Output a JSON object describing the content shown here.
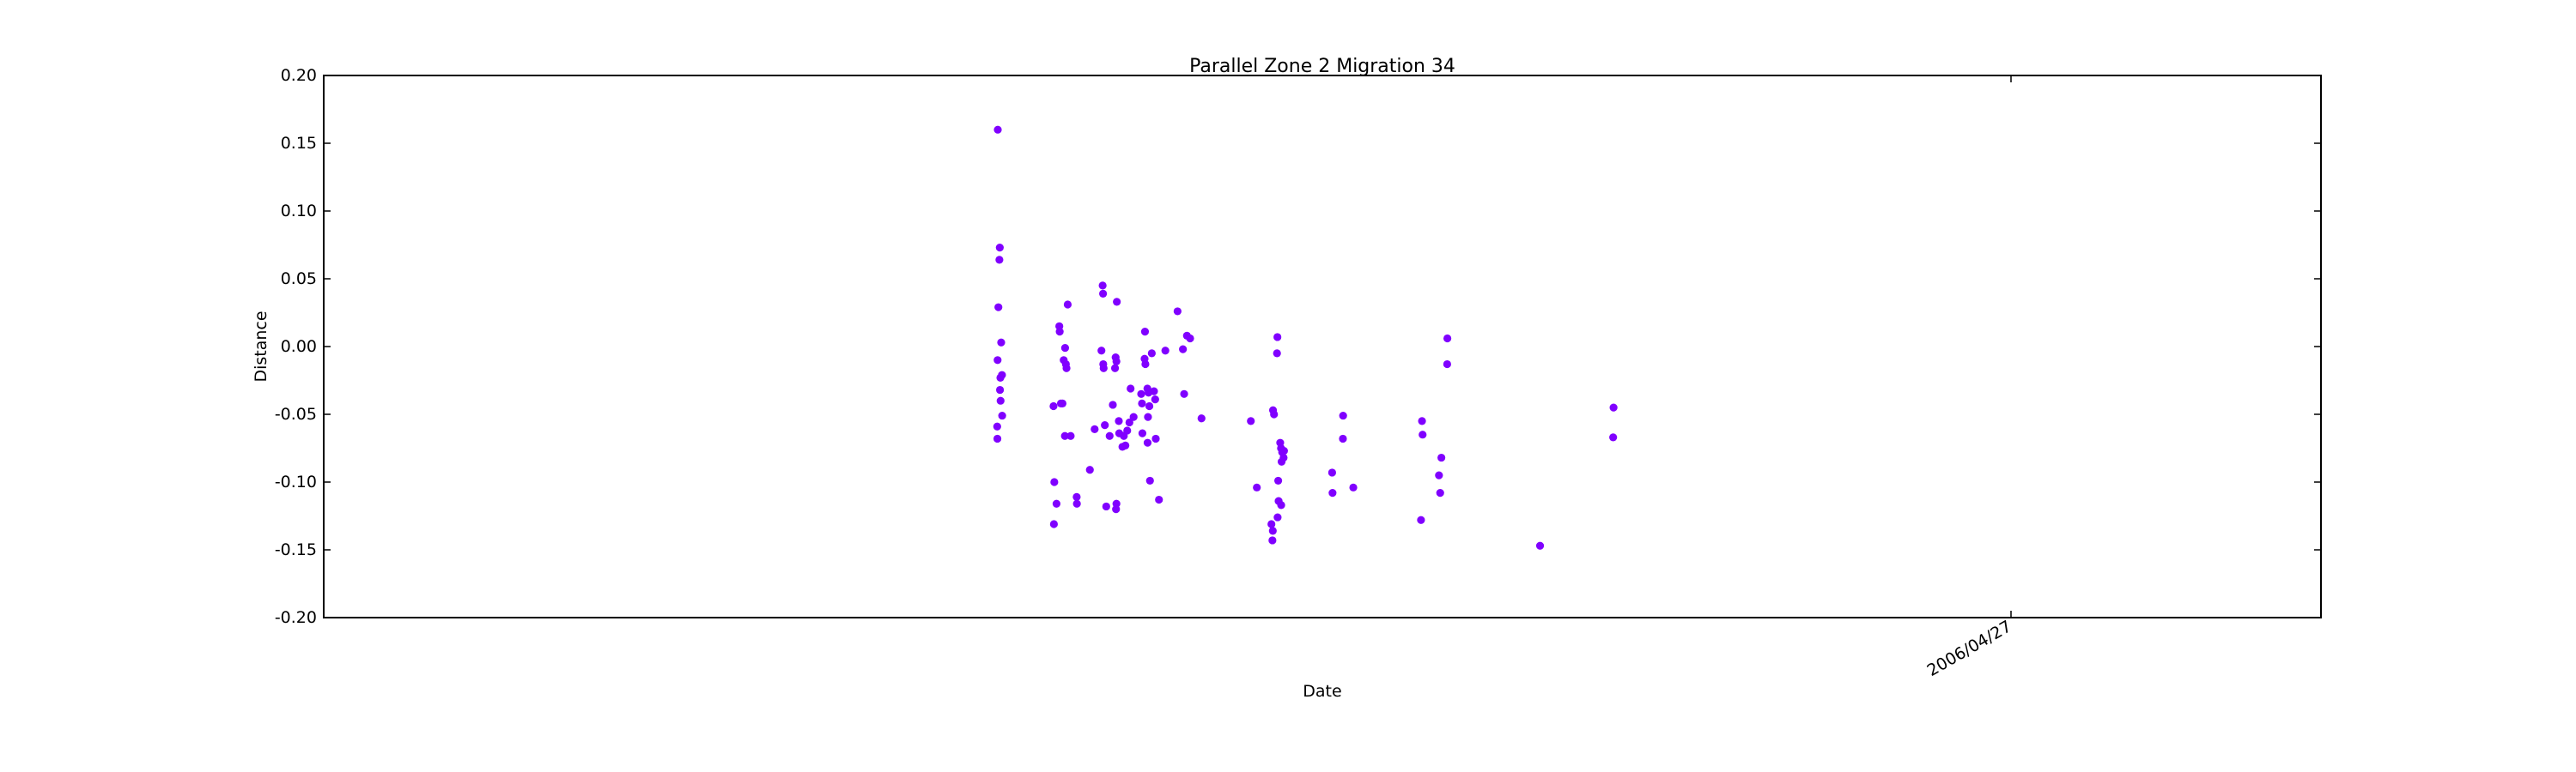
{
  "chart_data": {
    "type": "scatter",
    "title": "Parallel Zone 2 Migration 34",
    "xlabel": "Date",
    "ylabel": "Distance",
    "ylim": [
      -0.2,
      0.2
    ],
    "yticks": [
      "-0.20",
      "-0.15",
      "-0.10",
      "-0.05",
      "0.00",
      "0.05",
      "0.10",
      "0.15",
      "0.20"
    ],
    "xtick_labels": [
      "2006/04/27"
    ],
    "grid": false,
    "marker_color": "#8000ff",
    "x_note": "dates not individually labeled",
    "series": [
      {
        "points": [
          [
            0.3375,
            0.16
          ],
          [
            0.3378,
            0.029
          ],
          [
            0.3385,
            0.073
          ],
          [
            0.3383,
            0.064
          ],
          [
            0.3374,
            -0.01
          ],
          [
            0.3372,
            -0.059
          ],
          [
            0.3373,
            -0.068
          ],
          [
            0.3392,
            0.003
          ],
          [
            0.3388,
            -0.023
          ],
          [
            0.3386,
            -0.032
          ],
          [
            0.3389,
            -0.04
          ],
          [
            0.3396,
            -0.021
          ],
          [
            0.3397,
            -0.051
          ],
          [
            0.3654,
            -0.044
          ],
          [
            0.3658,
            -0.1
          ],
          [
            0.3656,
            -0.131
          ],
          [
            0.3669,
            -0.116
          ],
          [
            0.3683,
            0.015
          ],
          [
            0.3685,
            0.011
          ],
          [
            0.3691,
            -0.042
          ],
          [
            0.3699,
            -0.042
          ],
          [
            0.3705,
            -0.01
          ],
          [
            0.3712,
            -0.001
          ],
          [
            0.3716,
            -0.013
          ],
          [
            0.3719,
            -0.016
          ],
          [
            0.3711,
            -0.066
          ],
          [
            0.3725,
            0.031
          ],
          [
            0.374,
            -0.066
          ],
          [
            0.377,
            -0.111
          ],
          [
            0.3771,
            -0.116
          ],
          [
            0.3836,
            -0.091
          ],
          [
            0.386,
            -0.061
          ],
          [
            0.3894,
            -0.003
          ],
          [
            0.3903,
            -0.013
          ],
          [
            0.3905,
            -0.016
          ],
          [
            0.39,
            0.045
          ],
          [
            0.3902,
            0.039
          ],
          [
            0.3911,
            -0.058
          ],
          [
            0.3918,
            -0.118
          ],
          [
            0.3935,
            -0.066
          ],
          [
            0.3951,
            -0.043
          ],
          [
            0.3965,
            -0.008
          ],
          [
            0.3969,
            -0.011
          ],
          [
            0.3962,
            -0.016
          ],
          [
            0.3971,
            0.033
          ],
          [
            0.3969,
            -0.116
          ],
          [
            0.3967,
            -0.12
          ],
          [
            0.3981,
            -0.055
          ],
          [
            0.3983,
            -0.064
          ],
          [
            0.3999,
            -0.074
          ],
          [
            0.4006,
            -0.066
          ],
          [
            0.4014,
            -0.073
          ],
          [
            0.4023,
            -0.062
          ],
          [
            0.4034,
            -0.056
          ],
          [
            0.404,
            -0.031
          ],
          [
            0.4055,
            -0.052
          ],
          [
            0.4093,
            -0.035
          ],
          [
            0.4097,
            -0.042
          ],
          [
            0.4099,
            -0.064
          ],
          [
            0.411,
            -0.009
          ],
          [
            0.4114,
            -0.013
          ],
          [
            0.4112,
            0.011
          ],
          [
            0.4124,
            -0.031
          ],
          [
            0.4127,
            -0.052
          ],
          [
            0.4125,
            -0.071
          ],
          [
            0.413,
            -0.034
          ],
          [
            0.4134,
            -0.044
          ],
          [
            0.4137,
            -0.099
          ],
          [
            0.4146,
            -0.005
          ],
          [
            0.4157,
            -0.033
          ],
          [
            0.4163,
            -0.039
          ],
          [
            0.4166,
            -0.068
          ],
          [
            0.4182,
            -0.113
          ],
          [
            0.4214,
            -0.003
          ],
          [
            0.4275,
            0.026
          ],
          [
            0.4302,
            -0.002
          ],
          [
            0.4308,
            -0.035
          ],
          [
            0.4322,
            0.008
          ],
          [
            0.4338,
            0.006
          ],
          [
            0.4395,
            -0.053
          ],
          [
            0.4642,
            -0.055
          ],
          [
            0.4672,
            -0.104
          ],
          [
            0.4753,
            -0.047
          ],
          [
            0.4758,
            -0.05
          ],
          [
            0.4745,
            -0.131
          ],
          [
            0.4752,
            -0.136
          ],
          [
            0.475,
            -0.143
          ],
          [
            0.4775,
            0.007
          ],
          [
            0.4773,
            -0.005
          ],
          [
            0.4779,
            -0.099
          ],
          [
            0.4781,
            -0.114
          ],
          [
            0.4794,
            -0.117
          ],
          [
            0.4776,
            -0.126
          ],
          [
            0.4789,
            -0.071
          ],
          [
            0.4793,
            -0.075
          ],
          [
            0.4799,
            -0.078
          ],
          [
            0.4808,
            -0.077
          ],
          [
            0.4796,
            -0.085
          ],
          [
            0.4806,
            -0.082
          ],
          [
            0.5049,
            -0.093
          ],
          [
            0.5051,
            -0.108
          ],
          [
            0.5104,
            -0.051
          ],
          [
            0.5103,
            -0.068
          ],
          [
            0.5155,
            -0.104
          ],
          [
            0.5499,
            -0.055
          ],
          [
            0.5502,
            -0.065
          ],
          [
            0.5494,
            -0.128
          ],
          [
            0.5596,
            -0.082
          ],
          [
            0.5584,
            -0.095
          ],
          [
            0.559,
            -0.108
          ],
          [
            0.5626,
            0.006
          ],
          [
            0.5625,
            -0.013
          ],
          [
            0.609,
            -0.147
          ],
          [
            0.6458,
            -0.045
          ],
          [
            0.6456,
            -0.067
          ]
        ]
      }
    ]
  }
}
